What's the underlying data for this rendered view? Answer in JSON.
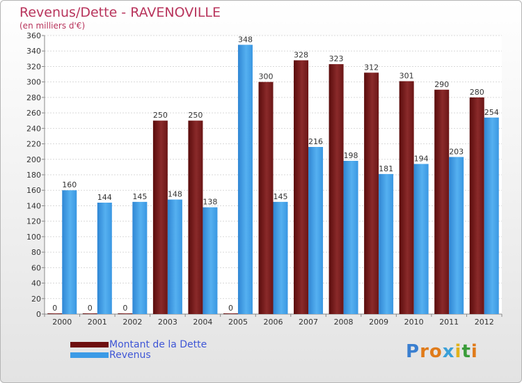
{
  "title": "Revenus/Dette - RAVENOVILLE",
  "subtitle": "(en milliers d'€)",
  "logo": "Proxiti",
  "colors": {
    "debt": "#7a1a1a",
    "revenue": "#3b9be6",
    "title": "#b8345c",
    "legend": "#3f56d6"
  },
  "chart_data": {
    "type": "bar",
    "title": "Revenus/Dette - RAVENOVILLE",
    "ylabel": "(en milliers d'€)",
    "categories": [
      "2000",
      "2001",
      "2002",
      "2003",
      "2004",
      "2005",
      "2006",
      "2007",
      "2008",
      "2009",
      "2010",
      "2011",
      "2012"
    ],
    "series": [
      {
        "name": "Montant de la Dette",
        "values": [
          0,
          0,
          0,
          250,
          250,
          0,
          300,
          328,
          323,
          312,
          301,
          290,
          280
        ]
      },
      {
        "name": "Revenus",
        "values": [
          160,
          144,
          145,
          148,
          138,
          348,
          145,
          216,
          198,
          181,
          194,
          203,
          254
        ]
      }
    ],
    "ylim": [
      0,
      360
    ],
    "yticks": [
      0,
      20,
      40,
      60,
      80,
      100,
      120,
      140,
      160,
      180,
      200,
      220,
      240,
      260,
      280,
      300,
      320,
      340,
      360
    ],
    "grid": true,
    "legend": "bottom-left"
  }
}
